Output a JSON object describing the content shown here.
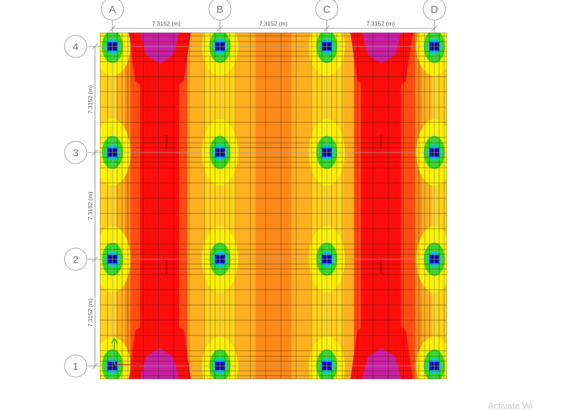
{
  "plan": {
    "grid_x": [
      "A",
      "B",
      "C",
      "D"
    ],
    "grid_y": [
      "4",
      "3",
      "2",
      "1"
    ],
    "spacing_x_labels": [
      "7.3152 (m)",
      "7.3152 (m)",
      "7.3152 (m)"
    ],
    "spacing_y_labels": [
      "7.3152 (m)",
      "7.3152 (m)",
      "7.3152 (m)"
    ]
  },
  "contour_colors": {
    "magenta": "#cc1fa3",
    "red": "#ff0d0d",
    "red_orange": "#ff4c12",
    "orange": "#ff8a1a",
    "light_orange": "#ffb020",
    "yellow_orange": "#ffd21c",
    "yellow": "#fff200",
    "green": "#33dd22",
    "cyan": "#00ccdd",
    "blue": "#1010ee",
    "navy": "#0a0a66"
  },
  "axis_colors": {
    "x": "#e02020",
    "y": "#20c020"
  },
  "watermark": "Activate Wi"
}
